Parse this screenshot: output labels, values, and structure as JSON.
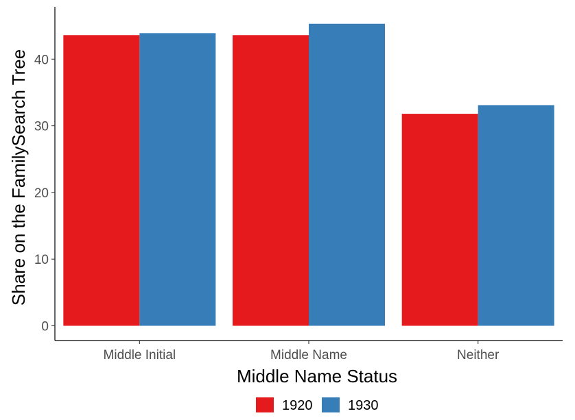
{
  "chart_data": {
    "type": "bar",
    "xlabel": "Middle Name Status",
    "ylabel": "Share on the FamilySearch Tree",
    "categories": [
      "Middle Initial",
      "Middle Name",
      "Neither"
    ],
    "series": [
      {
        "name": "1920",
        "color": "#e41a1c",
        "values": [
          43.6,
          43.6,
          31.8
        ]
      },
      {
        "name": "1930",
        "color": "#377eb8",
        "values": [
          43.9,
          45.3,
          33.1
        ]
      }
    ],
    "ylim": [
      0,
      45.3
    ],
    "yticks": [
      "0",
      "10",
      "20",
      "30",
      "40"
    ],
    "grid": false,
    "legend": {
      "position": "bottom",
      "entries": [
        "1920",
        "1930"
      ]
    }
  }
}
